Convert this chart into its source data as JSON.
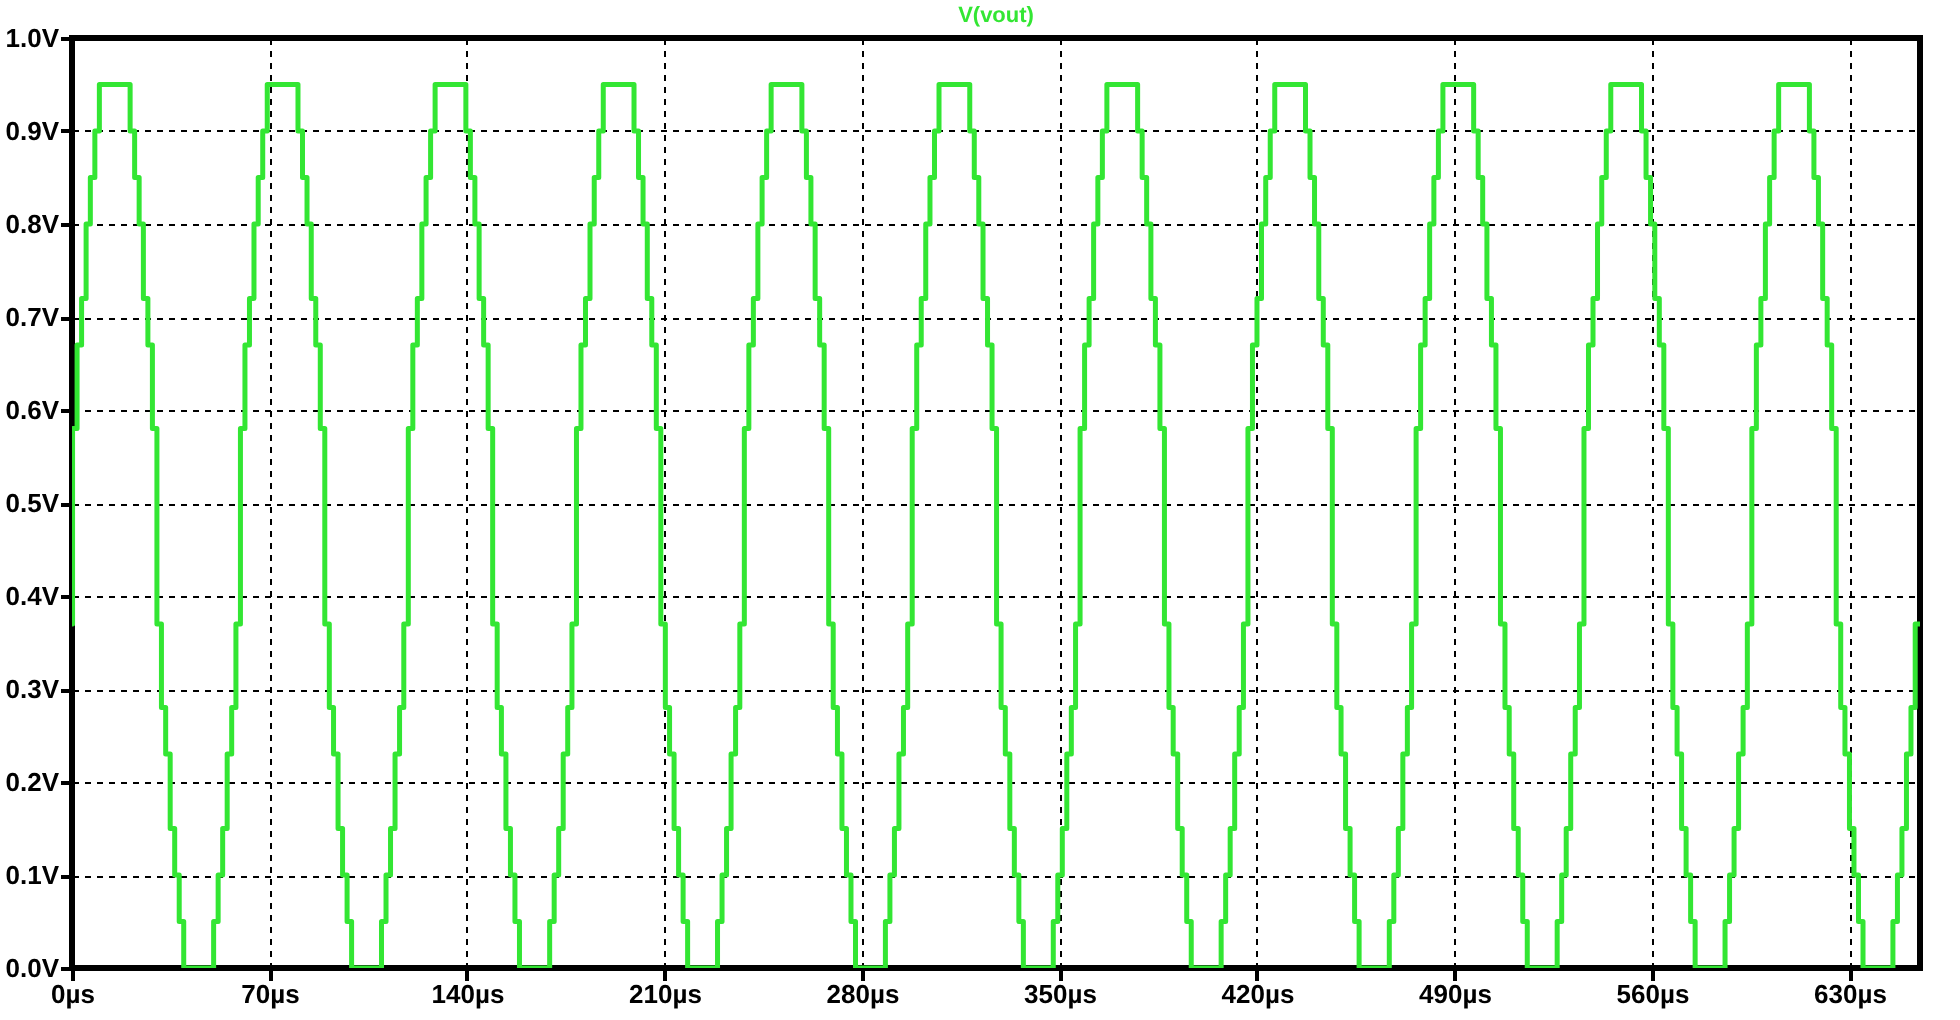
{
  "chart_data": {
    "type": "step",
    "xlim": [
      0,
      655
    ],
    "ylim": [
      0,
      1
    ],
    "xticks": [
      {
        "value": 0,
        "label": "0µs"
      },
      {
        "value": 70,
        "label": "70µs"
      },
      {
        "value": 140,
        "label": "140µs"
      },
      {
        "value": 210,
        "label": "210µs"
      },
      {
        "value": 280,
        "label": "280µs"
      },
      {
        "value": 350,
        "label": "350µs"
      },
      {
        "value": 420,
        "label": "420µs"
      },
      {
        "value": 490,
        "label": "490µs"
      },
      {
        "value": 560,
        "label": "560µs"
      },
      {
        "value": 630,
        "label": "630µs"
      }
    ],
    "yticks": [
      {
        "value": 0,
        "label": "0.0V"
      },
      {
        "value": 0.1,
        "label": "0.1V"
      },
      {
        "value": 0.2,
        "label": "0.2V"
      },
      {
        "value": 0.3,
        "label": "0.3V"
      },
      {
        "value": 0.4,
        "label": "0.4V"
      },
      {
        "value": 0.5,
        "label": "0.5V"
      },
      {
        "value": 0.6,
        "label": "0.6V"
      },
      {
        "value": 0.7,
        "label": "0.7V"
      },
      {
        "value": 0.8,
        "label": "0.8V"
      },
      {
        "value": 0.9,
        "label": "0.9V"
      },
      {
        "value": 1,
        "label": "1.0V"
      }
    ],
    "grid": true,
    "legend": "top",
    "x": [
      0,
      0.2,
      1.8,
      3.4,
      5.0,
      6.5,
      8.1,
      9.7,
      20.6,
      22.2,
      23.8,
      25.3,
      26.9,
      28.5,
      30.1,
      31.7,
      33.2,
      34.8,
      36.4,
      38.0,
      39.6,
      50.2,
      51.8,
      53.4,
      55.0,
      56.6,
      58.1,
      59.7,
      61.3,
      62.9,
      64.5,
      66.0,
      67.6,
      69.2,
      80.1,
      81.7,
      83.3,
      84.8,
      86.4,
      88.0,
      89.6,
      91.2,
      92.7,
      94.3,
      95.9,
      97.5,
      99.1,
      109.7,
      111.3,
      112.9,
      114.5,
      116.1,
      117.6,
      119.2,
      120.8,
      122.4,
      124.0,
      125.5,
      127.1,
      128.7,
      139.6,
      141.2,
      142.8,
      144.3,
      145.9,
      147.5,
      149.1,
      150.7,
      152.2,
      153.8,
      155.4,
      157.0,
      158.6,
      169.3,
      170.9,
      172.5,
      174.1,
      175.7,
      177.2,
      178.8,
      180.4,
      182.0,
      183.6,
      185.1,
      186.7,
      188.3,
      199.2,
      200.8,
      202.4,
      203.9,
      205.5,
      207.1,
      208.7,
      210.3,
      211.8,
      213.4,
      215.0,
      216.6,
      218.2,
      228.8,
      230.4,
      232.0,
      233.6,
      235.2,
      236.7,
      238.3,
      239.9,
      241.5,
      243.1,
      244.6,
      246.2,
      247.8,
      258.7,
      260.3,
      261.9,
      263.4,
      265.0,
      266.6,
      268.2,
      269.8,
      271.3,
      272.9,
      274.5,
      276.1,
      277.7,
      288.3,
      289.9,
      291.5,
      293.1,
      294.7,
      296.2,
      297.8,
      299.4,
      301.0,
      302.6,
      304.1,
      305.7,
      307.3,
      318.2,
      319.8,
      321.4,
      322.9,
      324.5,
      326.1,
      327.7,
      329.3,
      330.8,
      332.4,
      334.0,
      335.6,
      337.2,
      347.8,
      349.4,
      351.0,
      352.6,
      354.2,
      355.7,
      357.3,
      358.9,
      360.5,
      362.1,
      363.6,
      365.2,
      366.8,
      377.7,
      379.3,
      380.9,
      382.4,
      384.0,
      385.6,
      387.2,
      388.8,
      390.3,
      391.9,
      393.5,
      395.1,
      396.7,
      407.3,
      408.9,
      410.5,
      412.1,
      413.7,
      415.2,
      416.8,
      418.4,
      420.0,
      421.6,
      423.1,
      424.7,
      426.3,
      437.2,
      438.8,
      440.4,
      441.9,
      443.5,
      445.1,
      446.7,
      448.3,
      449.8,
      451.4,
      453.0,
      454.6,
      456.2,
      466.9,
      468.5,
      470.1,
      471.7,
      473.3,
      474.8,
      476.4,
      478.0,
      479.6,
      481.2,
      482.7,
      484.3,
      485.9,
      496.8,
      498.4,
      500.0,
      501.5,
      503.1,
      504.7,
      506.3,
      507.9,
      509.4,
      511.0,
      512.6,
      514.2,
      515.8,
      526.4,
      528.0,
      529.6,
      531.2,
      532.8,
      534.3,
      535.9,
      537.5,
      539.1,
      540.7,
      542.2,
      543.8,
      545.4,
      556.3,
      557.9,
      559.5,
      561.0,
      562.6,
      564.2,
      565.8,
      567.4,
      568.9,
      570.5,
      572.1,
      573.7,
      575.3,
      585.9,
      587.5,
      589.1,
      590.7,
      592.3,
      593.8,
      595.4,
      597.0,
      598.6,
      600.2,
      601.7,
      603.3,
      604.9,
      615.8,
      617.4,
      619.0,
      620.5,
      622.1,
      623.7,
      625.3,
      626.9,
      628.4,
      630.0,
      631.6,
      633.2,
      634.8,
      645.4,
      647.0,
      648.6,
      650.2,
      651.8,
      653.3,
      655
    ],
    "series": [
      {
        "name": "V(vout)",
        "color": "#33e633",
        "values": [
          0.37,
          0.58,
          0.67,
          0.72,
          0.8,
          0.85,
          0.9,
          0.95,
          0.9,
          0.85,
          0.8,
          0.72,
          0.67,
          0.58,
          0.37,
          0.28,
          0.23,
          0.15,
          0.1,
          0.05,
          0,
          0.05,
          0.1,
          0.15,
          0.23,
          0.28,
          0.37,
          0.58,
          0.67,
          0.72,
          0.8,
          0.85,
          0.9,
          0.95,
          0.9,
          0.85,
          0.8,
          0.72,
          0.67,
          0.58,
          0.37,
          0.28,
          0.23,
          0.15,
          0.1,
          0.05,
          0,
          0.05,
          0.1,
          0.15,
          0.23,
          0.28,
          0.37,
          0.58,
          0.67,
          0.72,
          0.8,
          0.85,
          0.9,
          0.95,
          0.9,
          0.85,
          0.8,
          0.72,
          0.67,
          0.58,
          0.37,
          0.28,
          0.23,
          0.15,
          0.1,
          0.05,
          0,
          0.05,
          0.1,
          0.15,
          0.23,
          0.28,
          0.37,
          0.58,
          0.67,
          0.72,
          0.8,
          0.85,
          0.9,
          0.95,
          0.9,
          0.85,
          0.8,
          0.72,
          0.67,
          0.58,
          0.37,
          0.28,
          0.23,
          0.15,
          0.1,
          0.05,
          0,
          0.05,
          0.1,
          0.15,
          0.23,
          0.28,
          0.37,
          0.58,
          0.67,
          0.72,
          0.8,
          0.85,
          0.9,
          0.95,
          0.9,
          0.85,
          0.8,
          0.72,
          0.67,
          0.58,
          0.37,
          0.28,
          0.23,
          0.15,
          0.1,
          0.05,
          0,
          0.05,
          0.1,
          0.15,
          0.23,
          0.28,
          0.37,
          0.58,
          0.67,
          0.72,
          0.8,
          0.85,
          0.9,
          0.95,
          0.9,
          0.85,
          0.8,
          0.72,
          0.67,
          0.58,
          0.37,
          0.28,
          0.23,
          0.15,
          0.1,
          0.05,
          0,
          0.05,
          0.1,
          0.15,
          0.23,
          0.28,
          0.37,
          0.58,
          0.67,
          0.72,
          0.8,
          0.85,
          0.9,
          0.95,
          0.9,
          0.85,
          0.8,
          0.72,
          0.67,
          0.58,
          0.37,
          0.28,
          0.23,
          0.15,
          0.1,
          0.05,
          0,
          0.05,
          0.1,
          0.15,
          0.23,
          0.28,
          0.37,
          0.58,
          0.67,
          0.72,
          0.8,
          0.85,
          0.9,
          0.95,
          0.9,
          0.85,
          0.8,
          0.72,
          0.67,
          0.58,
          0.37,
          0.28,
          0.23,
          0.15,
          0.1,
          0.05,
          0,
          0.05,
          0.1,
          0.15,
          0.23,
          0.28,
          0.37,
          0.58,
          0.67,
          0.72,
          0.8,
          0.85,
          0.9,
          0.95,
          0.9,
          0.85,
          0.8,
          0.72,
          0.67,
          0.58,
          0.37,
          0.28,
          0.23,
          0.15,
          0.1,
          0.05,
          0,
          0.05,
          0.1,
          0.15,
          0.23,
          0.28,
          0.37,
          0.58,
          0.67,
          0.72,
          0.8,
          0.85,
          0.9,
          0.95,
          0.9,
          0.85,
          0.8,
          0.72,
          0.67,
          0.58,
          0.37,
          0.28,
          0.23,
          0.15,
          0.1,
          0.05,
          0,
          0.05,
          0.1,
          0.15,
          0.23,
          0.28,
          0.37,
          0.58,
          0.67,
          0.72,
          0.8,
          0.85,
          0.9,
          0.95,
          0.9,
          0.85,
          0.8,
          0.72,
          0.67,
          0.58,
          0.37,
          0.28,
          0.23,
          0.15,
          0.1,
          0.05,
          0,
          0.05,
          0.1,
          0.15,
          0.23,
          0.28,
          0.37,
          0.37
        ]
      }
    ]
  }
}
